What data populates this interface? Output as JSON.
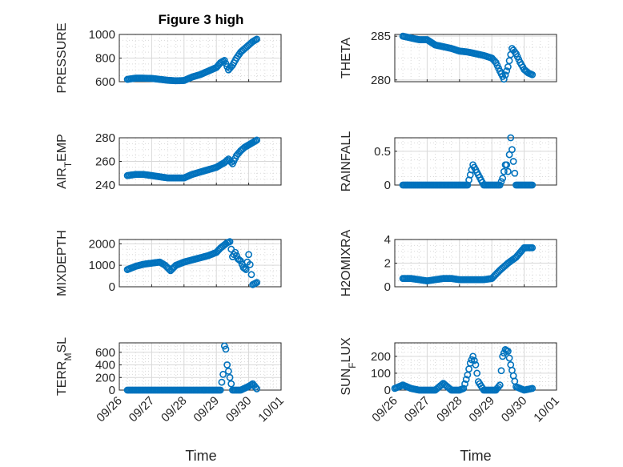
{
  "title": "Figure 3 high",
  "xlabel": "Time",
  "x_ticks": [
    "09/26",
    "09/27",
    "09/28",
    "09/29",
    "09/30",
    "10/01"
  ],
  "marker_color": "#0072BD",
  "chart_data": [
    {
      "type": "scatter",
      "name": "PRESSURE",
      "ylabel": "PRESSURE",
      "ylim": [
        600,
        1000
      ],
      "yticks": [
        600,
        800,
        1000
      ],
      "x": [
        "09/26 06:00",
        "09/26 12:00",
        "09/26 18:00",
        "09/27 00:00",
        "09/27 06:00",
        "09/27 12:00",
        "09/27 18:00",
        "09/28 00:00",
        "09/28 06:00",
        "09/28 12:00",
        "09/28 18:00",
        "09/29 00:00",
        "09/29 03:00",
        "09/29 06:00",
        "09/29 09:00",
        "09/29 12:00",
        "09/29 15:00",
        "09/29 18:00",
        "09/29 21:00",
        "09/30 00:00",
        "09/30 03:00",
        "09/30 06:00"
      ],
      "y": [
        620,
        630,
        630,
        628,
        620,
        612,
        608,
        610,
        640,
        660,
        690,
        720,
        760,
        780,
        700,
        740,
        800,
        850,
        880,
        910,
        940,
        960
      ]
    },
    {
      "type": "scatter",
      "name": "THETA",
      "ylabel": "THETA",
      "ylim": [
        279.8,
        285.2
      ],
      "yticks": [
        280,
        285
      ],
      "x": [
        "09/26 06:00",
        "09/26 12:00",
        "09/26 18:00",
        "09/27 00:00",
        "09/27 06:00",
        "09/27 12:00",
        "09/27 18:00",
        "09/28 00:00",
        "09/28 06:00",
        "09/28 12:00",
        "09/28 18:00",
        "09/29 00:00",
        "09/29 03:00",
        "09/29 06:00",
        "09/29 09:00",
        "09/29 12:00",
        "09/29 15:00",
        "09/29 18:00",
        "09/29 21:00",
        "09/30 00:00",
        "09/30 03:00",
        "09/30 06:00"
      ],
      "y": [
        285.0,
        284.8,
        284.6,
        284.6,
        284.0,
        283.8,
        283.6,
        283.3,
        283.2,
        283.0,
        282.8,
        282.5,
        282.0,
        281.0,
        280.1,
        281.5,
        283.6,
        283.0,
        282.0,
        281.2,
        280.8,
        280.6
      ]
    },
    {
      "type": "scatter",
      "name": "AIR_TEMP",
      "ylabel": "AIR_TEMP",
      "ylim": [
        240,
        280
      ],
      "yticks": [
        240,
        260,
        280
      ],
      "x": [
        "09/26 06:00",
        "09/26 12:00",
        "09/26 18:00",
        "09/27 00:00",
        "09/27 06:00",
        "09/27 12:00",
        "09/27 18:00",
        "09/28 00:00",
        "09/28 06:00",
        "09/28 12:00",
        "09/28 18:00",
        "09/29 00:00",
        "09/29 03:00",
        "09/29 06:00",
        "09/29 09:00",
        "09/29 12:00",
        "09/29 15:00",
        "09/29 18:00",
        "09/29 21:00",
        "09/30 00:00",
        "09/30 03:00",
        "09/30 06:00"
      ],
      "y": [
        248,
        249,
        249,
        248,
        247,
        246,
        246,
        246,
        249,
        251,
        253,
        255,
        257,
        259,
        262,
        258,
        265,
        269,
        272,
        274,
        276,
        278
      ]
    },
    {
      "type": "scatter",
      "name": "RAINFALL",
      "ylabel": "RAINFALL",
      "ylim": [
        0,
        0.7
      ],
      "yticks": [
        0,
        0.5
      ],
      "x": [
        "09/26 06:00",
        "09/26 18:00",
        "09/27 06:00",
        "09/27 18:00",
        "09/28 06:00",
        "09/28 10:00",
        "09/28 18:00",
        "09/29 00:00",
        "09/29 06:00",
        "09/29 08:00",
        "09/29 10:00",
        "09/29 11:00",
        "09/29 12:00",
        "09/29 14:00",
        "09/29 18:00",
        "09/30 00:00",
        "09/30 06:00"
      ],
      "y": [
        0,
        0,
        0,
        0,
        0,
        0.3,
        0,
        0,
        0,
        0.1,
        0.3,
        0.3,
        0.2,
        0.7,
        0,
        0,
        0
      ]
    },
    {
      "type": "scatter",
      "name": "MIXDEPTH",
      "ylabel": "MIXDEPTH",
      "ylim": [
        0,
        2200
      ],
      "yticks": [
        0,
        1000,
        2000
      ],
      "x": [
        "09/26 06:00",
        "09/26 12:00",
        "09/26 18:00",
        "09/27 00:00",
        "09/27 06:00",
        "09/27 10:00",
        "09/27 14:00",
        "09/27 18:00",
        "09/28 00:00",
        "09/28 06:00",
        "09/28 12:00",
        "09/28 18:00",
        "09/29 00:00",
        "09/29 03:00",
        "09/29 06:00",
        "09/29 08:00",
        "09/29 10:00",
        "09/29 12:00",
        "09/29 14:00",
        "09/29 16:00",
        "09/29 18:00",
        "09/29 20:00",
        "09/29 22:00",
        "09/30 00:00",
        "09/30 03:00",
        "09/30 06:00"
      ],
      "y": [
        800,
        950,
        1050,
        1100,
        1150,
        1000,
        750,
        1000,
        1150,
        1250,
        1350,
        1450,
        1600,
        1800,
        1950,
        2050,
        2100,
        1400,
        1600,
        1300,
        1200,
        900,
        800,
        1500,
        100,
        200
      ]
    },
    {
      "type": "scatter",
      "name": "H2OMIXRA",
      "ylabel": "H2OMIXRA",
      "ylim": [
        0,
        4
      ],
      "yticks": [
        0,
        2,
        4
      ],
      "x": [
        "09/26 06:00",
        "09/26 12:00",
        "09/26 18:00",
        "09/27 00:00",
        "09/27 06:00",
        "09/27 12:00",
        "09/27 18:00",
        "09/28 00:00",
        "09/28 06:00",
        "09/28 12:00",
        "09/28 18:00",
        "09/29 00:00",
        "09/29 06:00",
        "09/29 12:00",
        "09/29 18:00",
        "09/30 00:00",
        "09/30 06:00"
      ],
      "y": [
        0.7,
        0.7,
        0.6,
        0.5,
        0.6,
        0.7,
        0.7,
        0.6,
        0.6,
        0.6,
        0.6,
        0.7,
        1.4,
        2.0,
        2.5,
        3.3,
        3.3
      ]
    },
    {
      "type": "scatter",
      "name": "TERR_MSL",
      "ylabel": "TERR_MSL",
      "ylim": [
        0,
        750
      ],
      "yticks": [
        0,
        200,
        400,
        600
      ],
      "x": [
        "09/26 06:00",
        "09/26 18:00",
        "09/27 06:00",
        "09/27 18:00",
        "09/28 06:00",
        "09/28 18:00",
        "09/29 00:00",
        "09/29 03:00",
        "09/29 05:00",
        "09/29 06:00",
        "09/29 07:00",
        "09/29 08:00",
        "09/29 09:00",
        "09/29 10:00",
        "09/29 12:00",
        "09/29 18:00",
        "09/30 00:00",
        "09/30 03:00",
        "09/30 06:00"
      ],
      "y": [
        0,
        0,
        0,
        0,
        0,
        0,
        0,
        0,
        250,
        700,
        650,
        400,
        300,
        200,
        0,
        0,
        60,
        100,
        20
      ]
    },
    {
      "type": "scatter",
      "name": "SUN_FLUX",
      "ylabel": "SUN_FLUX",
      "ylim": [
        0,
        280
      ],
      "yticks": [
        0,
        100,
        200
      ],
      "x": [
        "09/26 00:00",
        "09/26 06:00",
        "09/26 12:00",
        "09/26 18:00",
        "09/27 00:00",
        "09/27 06:00",
        "09/27 12:00",
        "09/27 18:00",
        "09/28 00:00",
        "09/28 03:00",
        "09/28 06:00",
        "09/28 08:00",
        "09/28 10:00",
        "09/28 12:00",
        "09/28 14:00",
        "09/28 18:00",
        "09/29 00:00",
        "09/29 03:00",
        "09/29 06:00",
        "09/29 08:00",
        "09/29 10:00",
        "09/29 12:00",
        "09/29 14:00",
        "09/29 18:00",
        "09/30 00:00",
        "09/30 06:00"
      ],
      "y": [
        10,
        30,
        10,
        0,
        0,
        0,
        40,
        0,
        0,
        10,
        90,
        160,
        200,
        150,
        50,
        0,
        0,
        0,
        30,
        200,
        240,
        230,
        150,
        20,
        0,
        10
      ]
    }
  ]
}
